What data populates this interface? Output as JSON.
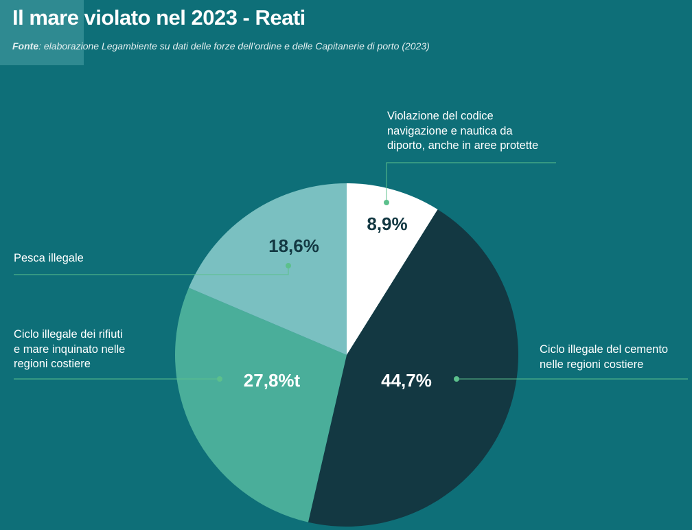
{
  "header": {
    "title": "Il mare violato nel 2023 - Reati",
    "source_prefix": "Fonte",
    "source_text": ": elaborazione Legambiente su dati delle forze dell’ordine e delle Capitanerie di porto (2023)"
  },
  "colors": {
    "background": "#0e6f78",
    "navigazione": "#ffffff",
    "cemento": "#133842",
    "rifiuti": "#4aae9a",
    "pesca": "#7ac0c1",
    "leader": "#5cc08c",
    "dark_text": "#133842"
  },
  "chart_data": {
    "type": "pie",
    "title": "Il mare violato nel 2023 - Reati",
    "start": "top",
    "direction": "clockwise",
    "slices": [
      {
        "category": "Violazione del codice navigazione e nautica da diporto, anche in aree protette",
        "value": 8.9,
        "label": "8,9%"
      },
      {
        "category": "Ciclo illegale del cemento nelle regioni costiere",
        "value": 44.7,
        "label": "44,7%"
      },
      {
        "category": "Ciclo illegale dei rifiuti e mare inquinato nelle regioni costiere",
        "value": 27.8,
        "label": "27,8%t"
      },
      {
        "category": "Pesca illegale",
        "value": 18.6,
        "label": "18,6%"
      }
    ]
  },
  "labels": {
    "navigazione": "Violazione del codice\nnavigazione e nautica da\ndiporto, anche in aree protette",
    "cemento": "Ciclo illegale del cemento\nnelle regioni costiere",
    "rifiuti": "Ciclo illegale dei rifiuti\ne mare inquinato nelle\nregioni costiere",
    "pesca": "Pesca illegale"
  }
}
